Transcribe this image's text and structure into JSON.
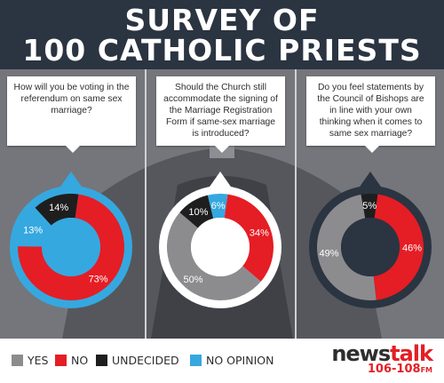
{
  "title_line1": "SURVEY OF",
  "title_line2": "100 CATHOLIC PRIESTS",
  "colors": {
    "yes": "#8c8c8e",
    "no": "#e51d25",
    "undecided": "#1e1e1e",
    "no_opinion": "#35a8e0",
    "label_text": "#ffffff"
  },
  "legend": [
    {
      "key": "yes",
      "label": "YES"
    },
    {
      "key": "no",
      "label": "NO"
    },
    {
      "key": "undecided",
      "label": "UNDECIDED"
    },
    {
      "key": "no_opinion",
      "label": "NO OPINION"
    }
  ],
  "brand": {
    "name_a": "news",
    "name_b": "talk",
    "freq": "106-108",
    "freq_unit": "FM"
  },
  "chart_data": [
    {
      "type": "pie",
      "question": "How will you be voting in the referendum on same sex marriage?",
      "center_color_key": "no_opinion",
      "slices": [
        {
          "key": "no",
          "label": "73%",
          "value": 73
        },
        {
          "key": "no_opinion",
          "label": "13%",
          "value": 13
        },
        {
          "key": "undecided",
          "label": "14%",
          "value": 14
        }
      ]
    },
    {
      "type": "pie",
      "question": "Should the Church still accommodate the signing of the Marriage Registration Form if same-sex marriage is introduced?",
      "center_color_key": "white",
      "slices": [
        {
          "key": "no",
          "label": "34%",
          "value": 34
        },
        {
          "key": "yes",
          "label": "50%",
          "value": 50
        },
        {
          "key": "undecided",
          "label": "10%",
          "value": 10
        },
        {
          "key": "no_opinion",
          "label": "6%",
          "value": 6
        }
      ]
    },
    {
      "type": "pie",
      "question": "Do you feel statements by the Council of Bishops are in line with your own thinking when it comes to same sex marriage?",
      "center_color_key": "navy",
      "slices": [
        {
          "key": "no",
          "label": "46%",
          "value": 46
        },
        {
          "key": "yes",
          "label": "49%",
          "value": 49
        },
        {
          "key": "undecided",
          "label": "5%",
          "value": 5
        }
      ]
    }
  ]
}
